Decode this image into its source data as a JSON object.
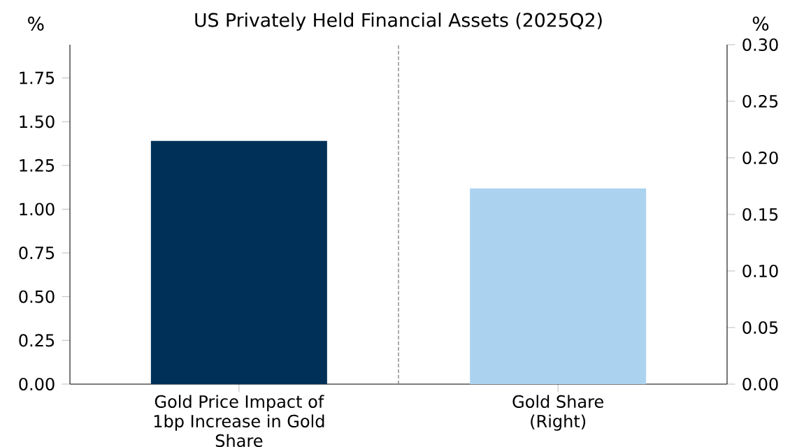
{
  "chart_data": {
    "type": "bar",
    "title": "US Privately Held Financial Assets (2025Q2)",
    "categories": [
      "Gold Price Impact of 1bp Increase in Gold Share",
      "Gold Share (Right)"
    ],
    "ylabel": "%",
    "y2label": "%",
    "series": [
      {
        "color": "#003057",
        "values": [
          1.39,
          null
        ]
      },
      {
        "color": "#abd3ef",
        "values": [
          null,
          0.173
        ],
        "axis": "y2"
      }
    ],
    "ylim": [
      0,
      1.94
    ],
    "yticks": [
      {
        "value": 0,
        "label": "0.00"
      },
      {
        "value": 0.25,
        "label": "0.25"
      },
      {
        "value": 0.5,
        "label": "0.50"
      },
      {
        "value": 0.75,
        "label": "0.75"
      },
      {
        "value": 1,
        "label": "1.00"
      },
      {
        "value": 1.25,
        "label": "1.25"
      },
      {
        "value": 1.5,
        "label": "1.50"
      },
      {
        "value": 1.75,
        "label": "1.75"
      }
    ],
    "y2lim": [
      0,
      0.3
    ],
    "y2ticks": [
      {
        "value": 0,
        "label": "0.00"
      },
      {
        "value": 0.05,
        "label": "0.05"
      },
      {
        "value": 0.1,
        "label": "0.10"
      },
      {
        "value": 0.15,
        "label": "0.15"
      },
      {
        "value": 0.2,
        "label": "0.20"
      },
      {
        "value": 0.25,
        "label": "0.25"
      },
      {
        "value": 0.3,
        "label": "0.30"
      }
    ]
  }
}
